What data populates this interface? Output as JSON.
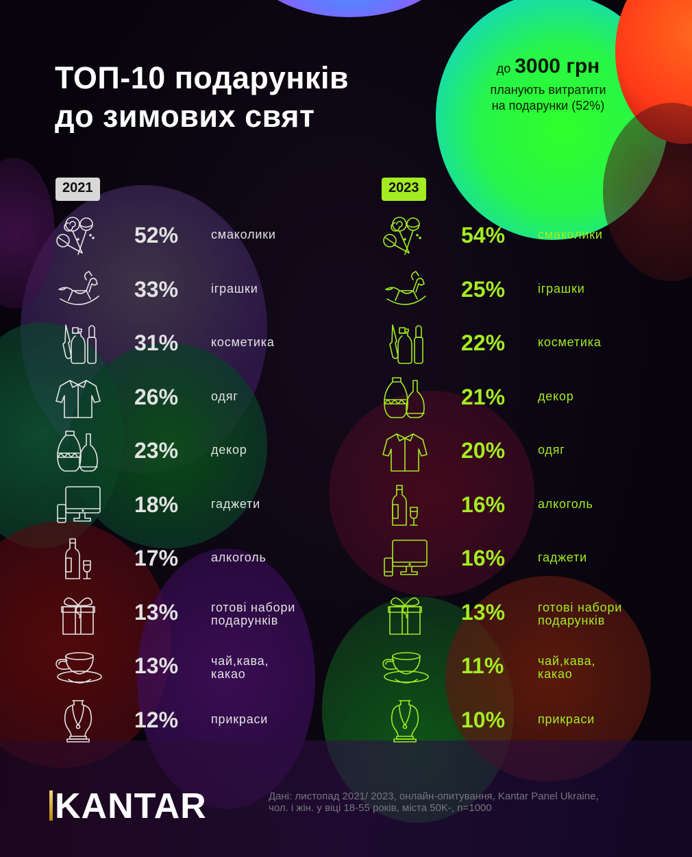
{
  "header": {
    "title_line1": "ТОП-10 подарунків",
    "title_line2": "до зимових свят"
  },
  "callout": {
    "prefix": "до",
    "amount": "3000 грн",
    "line1": "планують витратити",
    "line2": "на подарунки (52%)"
  },
  "columns": {
    "y2021": {
      "year": "2021",
      "rows": [
        {
          "pct": "52%",
          "label": "смаколики",
          "icon": "candy-icon"
        },
        {
          "pct": "33%",
          "label": "іграшки",
          "icon": "rocking-horse-icon"
        },
        {
          "pct": "31%",
          "label": "косметика",
          "icon": "cosmetics-icon"
        },
        {
          "pct": "26%",
          "label": "одяг",
          "icon": "shirt-icon"
        },
        {
          "pct": "23%",
          "label": "декор",
          "icon": "vases-icon"
        },
        {
          "pct": "18%",
          "label": "гаджети",
          "icon": "gadgets-icon"
        },
        {
          "pct": "17%",
          "label": "алкоголь",
          "icon": "wine-icon"
        },
        {
          "pct": "13%",
          "label": "готові набори\nподарунків",
          "icon": "gift-box-icon"
        },
        {
          "pct": "13%",
          "label": "чай,кава,\nкакао",
          "icon": "teacup-icon"
        },
        {
          "pct": "12%",
          "label": "прикраси",
          "icon": "necklace-icon"
        }
      ]
    },
    "y2023": {
      "year": "2023",
      "rows": [
        {
          "pct": "54%",
          "label": "смаколики",
          "icon": "candy-icon"
        },
        {
          "pct": "25%",
          "label": "іграшки",
          "icon": "rocking-horse-icon"
        },
        {
          "pct": "22%",
          "label": "косметика",
          "icon": "cosmetics-icon"
        },
        {
          "pct": "21%",
          "label": "декор",
          "icon": "vases-icon"
        },
        {
          "pct": "20%",
          "label": "одяг",
          "icon": "shirt-icon"
        },
        {
          "pct": "16%",
          "label": "алкоголь",
          "icon": "wine-icon"
        },
        {
          "pct": "16%",
          "label": "гаджети",
          "icon": "gadgets-icon"
        },
        {
          "pct": "13%",
          "label": "готові набори\nподарунків",
          "icon": "gift-box-icon"
        },
        {
          "pct": "11%",
          "label": "чай,кава,\nкакао",
          "icon": "teacup-icon"
        },
        {
          "pct": "10%",
          "label": "прикраси",
          "icon": "necklace-icon"
        }
      ]
    }
  },
  "colors": {
    "accent_2023": "#a4ec22",
    "text_2021": "#e2e2e2",
    "badge_2021": "#d8d8d8",
    "callout_orb": "#2dff2a"
  },
  "footer": {
    "logo": "KANTAR",
    "source_line1": "Дані: листопад  2021/ 2023, онлайн-опитування, Kantar Panel Ukraine,",
    "source_line2": "чол. і жін. у віці 18-55 років, міста 50K-, n=1000"
  },
  "chart_data": {
    "type": "table",
    "title": "ТОП-10 подарунків до зимових свят",
    "note": "до 3000 грн планують витратити на подарунки (52%)",
    "series": [
      {
        "name": "2021",
        "categories": [
          "смаколики",
          "іграшки",
          "косметика",
          "одяг",
          "декор",
          "гаджети",
          "алкоголь",
          "готові набори подарунків",
          "чай, кава, какао",
          "прикраси"
        ],
        "values": [
          52,
          33,
          31,
          26,
          23,
          18,
          17,
          13,
          13,
          12
        ]
      },
      {
        "name": "2023",
        "categories": [
          "смаколики",
          "іграшки",
          "косметика",
          "декор",
          "одяг",
          "алкоголь",
          "гаджети",
          "готові набори подарунків",
          "чай, кава, какао",
          "прикраси"
        ],
        "values": [
          54,
          25,
          22,
          21,
          20,
          16,
          16,
          13,
          11,
          10
        ]
      }
    ],
    "unit": "%",
    "source": "Дані: листопад 2021/ 2023, онлайн-опитування, Kantar Panel Ukraine, чол. і жін. у віці 18-55 років, міста 50K-, n=1000"
  }
}
